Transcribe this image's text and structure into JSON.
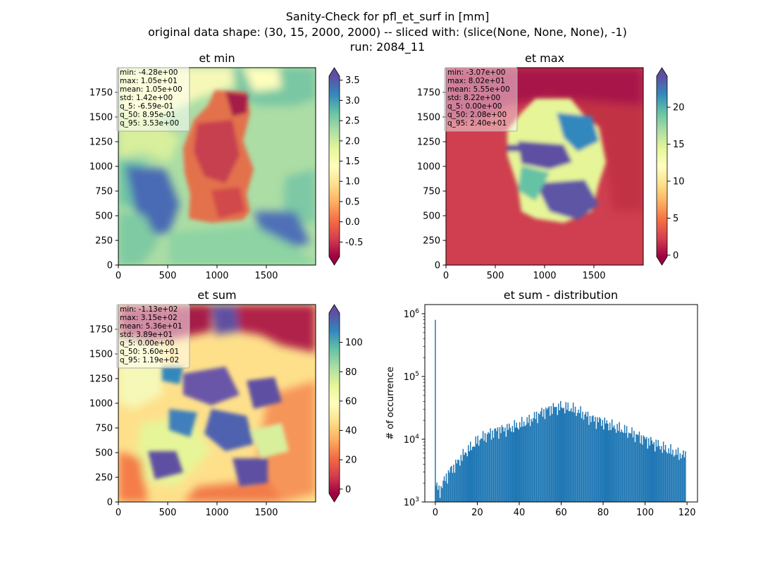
{
  "figure": {
    "title_lines": [
      "Sanity-Check for pfl_et_surf in [mm]",
      "original data shape: (30, 15, 2000, 2000) -- sliced with: (slice(None, None, None), -1)",
      "run: 2084_11"
    ]
  },
  "chart_data": [
    {
      "type": "heatmap",
      "title": "et min",
      "x_ticks": [
        "0",
        "500",
        "1000",
        "1500"
      ],
      "y_ticks": [
        "0",
        "250",
        "500",
        "750",
        "1000",
        "1250",
        "1500",
        "1750"
      ],
      "xlim": [
        0,
        2000
      ],
      "ylim": [
        0,
        2000
      ],
      "colormap": "Spectral",
      "colorbar_ticks": [
        "-0.5",
        "0.0",
        "0.5",
        "1.0",
        "1.5",
        "2.0",
        "2.5",
        "3.0",
        "3.5"
      ],
      "colorbar_range": [
        -0.86,
        3.6
      ],
      "stats": [
        "min: -4.28e+00",
        "max: 1.05e+01",
        "mean: 1.05e+00",
        "std: 1.42e+00",
        "q_5: -6.59e-01",
        "q_50: 8.95e-01",
        "q_95: 3.53e+00"
      ]
    },
    {
      "type": "heatmap",
      "title": "et max",
      "x_ticks": [
        "0",
        "500",
        "1000",
        "1500"
      ],
      "y_ticks": [
        "0",
        "250",
        "500",
        "750",
        "1000",
        "1250",
        "1500",
        "1750"
      ],
      "xlim": [
        0,
        2000
      ],
      "ylim": [
        0,
        2000
      ],
      "colormap": "Spectral",
      "colorbar_ticks": [
        "0",
        "5",
        "10",
        "15",
        "20"
      ],
      "colorbar_range": [
        -0.2,
        24.2
      ],
      "stats": [
        "min: -3.07e+00",
        "max: 8.02e+01",
        "mean: 5.55e+00",
        "std: 8.22e+00",
        "q_5: 0.00e+00",
        "q_50: 2.08e+00",
        "q_95: 2.40e+01"
      ]
    },
    {
      "type": "heatmap",
      "title": "et sum",
      "x_ticks": [
        "0",
        "500",
        "1000",
        "1500"
      ],
      "y_ticks": [
        "0",
        "250",
        "500",
        "750",
        "1000",
        "1250",
        "1500",
        "1750"
      ],
      "xlim": [
        0,
        2000
      ],
      "ylim": [
        0,
        2000
      ],
      "colormap": "Spectral",
      "colorbar_ticks": [
        "0",
        "20",
        "40",
        "60",
        "80",
        "100"
      ],
      "colorbar_range": [
        -3,
        120
      ],
      "stats": [
        "min: -1.13e+02",
        "max: 3.15e+02",
        "mean: 5.36e+01",
        "std: 3.89e+01",
        "q_5: 0.00e+00",
        "q_50: 5.60e+01",
        "q_95: 1.19e+02"
      ]
    },
    {
      "type": "bar",
      "title": "et sum - distribution",
      "xlabel": "",
      "ylabel": "# of occurrence",
      "yscale": "log",
      "xlim": [
        -5,
        125
      ],
      "ylim": [
        1000,
        1400000
      ],
      "x_ticks": [
        "0",
        "20",
        "40",
        "60",
        "80",
        "100",
        "120"
      ],
      "y_ticks": [
        "10^3",
        "10^4",
        "10^5",
        "10^6"
      ],
      "bar_color": "#1f77b4",
      "bin_width": 0.5,
      "spike": {
        "x": 0,
        "value": 800000
      },
      "profile": [
        [
          0.5,
          1800
        ],
        [
          2,
          1500
        ],
        [
          5,
          2500
        ],
        [
          8,
          3500
        ],
        [
          10,
          4000
        ],
        [
          12,
          5000
        ],
        [
          15,
          6500
        ],
        [
          18,
          8000
        ],
        [
          20,
          9500
        ],
        [
          25,
          12000
        ],
        [
          30,
          14000
        ],
        [
          35,
          15000
        ],
        [
          40,
          17000
        ],
        [
          45,
          20000
        ],
        [
          50,
          26000
        ],
        [
          55,
          31000
        ],
        [
          60,
          33000
        ],
        [
          65,
          31000
        ],
        [
          70,
          26000
        ],
        [
          75,
          21000
        ],
        [
          80,
          19000
        ],
        [
          85,
          16000
        ],
        [
          90,
          14000
        ],
        [
          95,
          12000
        ],
        [
          100,
          10000
        ],
        [
          105,
          8500
        ],
        [
          110,
          7000
        ],
        [
          115,
          6000
        ],
        [
          119,
          5500
        ]
      ]
    }
  ]
}
